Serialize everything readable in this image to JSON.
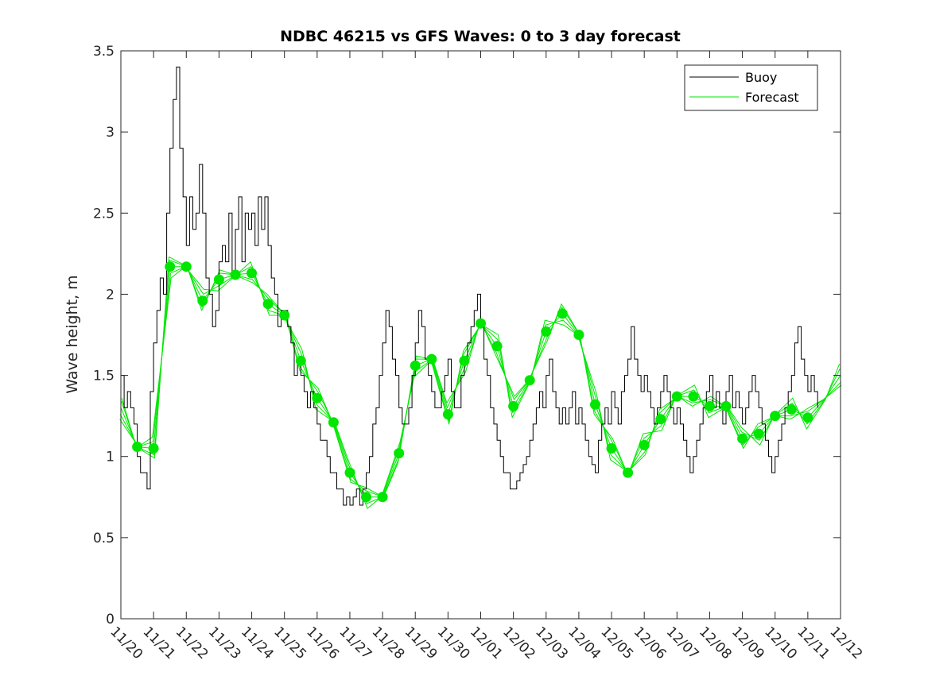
{
  "chart_data": {
    "type": "line",
    "title": "NDBC 46215 vs GFS Waves: 0 to 3 day forecast",
    "xlabel": "",
    "ylabel": "Wave height, m",
    "x_tick_labels": [
      "11/20",
      "11/21",
      "11/22",
      "11/23",
      "11/24",
      "11/25",
      "11/26",
      "11/27",
      "11/28",
      "11/29",
      "11/30",
      "12/01",
      "12/02",
      "12/03",
      "12/04",
      "12/05",
      "12/06",
      "12/07",
      "12/08",
      "12/09",
      "12/10",
      "12/11",
      "12/12"
    ],
    "xlim": [
      0,
      22
    ],
    "y_ticks": [
      0,
      0.5,
      1,
      1.5,
      2,
      2.5,
      3,
      3.5
    ],
    "y_tick_labels": [
      "0",
      "0.5",
      "1",
      "1.5",
      "2",
      "2.5",
      "3",
      "3.5"
    ],
    "ylim": [
      0,
      3.5
    ],
    "grid": false,
    "legend_position": "top-right",
    "legend": [
      "Buoy",
      "Forecast"
    ],
    "colors": {
      "buoy": "#000000",
      "forecast": "#00e600",
      "axis": "#262626"
    },
    "x_units": "days since 11/20",
    "series": [
      {
        "name": "Buoy",
        "x": [
          0,
          0.1,
          0.2,
          0.3,
          0.4,
          0.5,
          0.6,
          0.7,
          0.8,
          0.9,
          1.0,
          1.1,
          1.2,
          1.3,
          1.4,
          1.5,
          1.6,
          1.7,
          1.8,
          1.9,
          2.0,
          2.1,
          2.2,
          2.3,
          2.4,
          2.5,
          2.6,
          2.7,
          2.8,
          2.9,
          3.0,
          3.1,
          3.2,
          3.3,
          3.4,
          3.5,
          3.6,
          3.7,
          3.8,
          3.9,
          4.0,
          4.1,
          4.2,
          4.3,
          4.4,
          4.5,
          4.6,
          4.7,
          4.8,
          4.9,
          5.0,
          5.1,
          5.2,
          5.3,
          5.4,
          5.5,
          5.6,
          5.7,
          5.8,
          5.9,
          6.0,
          6.1,
          6.2,
          6.3,
          6.4,
          6.5,
          6.6,
          6.7,
          6.8,
          6.9,
          7.0,
          7.1,
          7.2,
          7.3,
          7.4,
          7.5,
          7.6,
          7.7,
          7.8,
          7.9,
          8.0,
          8.1,
          8.2,
          8.3,
          8.4,
          8.5,
          8.6,
          8.7,
          8.8,
          8.9,
          9.0,
          9.1,
          9.2,
          9.3,
          9.4,
          9.5,
          9.6,
          9.7,
          9.8,
          9.9,
          10.0,
          10.1,
          10.2,
          10.3,
          10.4,
          10.5,
          10.6,
          10.7,
          10.8,
          10.9,
          11.0,
          11.1,
          11.2,
          11.3,
          11.4,
          11.5,
          11.6,
          11.7,
          11.8,
          11.9,
          12.0,
          12.1,
          12.2,
          12.3,
          12.4,
          12.5,
          12.6,
          12.7,
          12.8,
          12.9,
          13.0,
          13.1,
          13.2,
          13.3,
          13.4,
          13.5,
          13.6,
          13.7,
          13.8,
          13.9,
          14.0,
          14.1,
          14.2,
          14.3,
          14.4,
          14.5,
          14.6,
          14.7,
          14.8,
          14.9,
          15.0,
          15.1,
          15.2,
          15.3,
          15.4,
          15.5,
          15.6,
          15.7,
          15.8,
          15.9,
          16.0,
          16.1,
          16.2,
          16.3,
          16.4,
          16.5,
          16.6,
          16.7,
          16.8,
          16.9,
          17.0,
          17.1,
          17.2,
          17.3,
          17.4,
          17.5,
          17.6,
          17.7,
          17.8,
          17.9,
          18.0,
          18.1,
          18.2,
          18.3,
          18.4,
          18.5,
          18.6,
          18.7,
          18.8,
          18.9,
          19.0,
          19.1,
          19.2,
          19.3,
          19.4,
          19.5,
          19.6,
          19.7,
          19.8,
          19.9,
          20.0,
          20.1,
          20.2,
          20.3,
          20.4,
          20.5,
          20.6,
          20.7,
          20.8,
          20.9,
          21.0,
          21.1,
          21.2,
          21.3
        ],
        "values": [
          1.5,
          1.3,
          1.4,
          1.3,
          1.2,
          1.0,
          0.9,
          0.9,
          0.8,
          1.4,
          1.7,
          1.9,
          2.1,
          2.0,
          2.5,
          2.9,
          3.2,
          3.4,
          2.9,
          2.6,
          2.3,
          2.6,
          2.4,
          2.5,
          2.8,
          2.5,
          2.1,
          2.0,
          1.8,
          1.9,
          2.2,
          2.3,
          2.2,
          2.5,
          2.1,
          2.4,
          2.6,
          2.2,
          2.5,
          2.4,
          2.5,
          2.3,
          2.6,
          2.4,
          2.6,
          2.3,
          2.1,
          2.0,
          1.8,
          1.9,
          1.9,
          1.8,
          1.7,
          1.5,
          1.6,
          1.5,
          1.4,
          1.3,
          1.4,
          1.3,
          1.2,
          1.1,
          1.1,
          1.0,
          0.9,
          0.9,
          0.8,
          0.8,
          0.7,
          0.75,
          0.7,
          0.75,
          0.8,
          0.7,
          0.8,
          0.9,
          1.0,
          1.2,
          1.3,
          1.5,
          1.7,
          1.9,
          1.8,
          1.6,
          1.5,
          1.3,
          1.2,
          1.2,
          1.3,
          1.5,
          1.7,
          1.9,
          1.8,
          1.6,
          1.5,
          1.4,
          1.3,
          1.3,
          1.4,
          1.5,
          1.6,
          1.4,
          1.3,
          1.3,
          1.5,
          1.6,
          1.7,
          1.8,
          1.9,
          2.0,
          1.8,
          1.6,
          1.5,
          1.3,
          1.2,
          1.1,
          1.0,
          0.9,
          0.9,
          0.8,
          0.8,
          0.85,
          0.9,
          0.95,
          1.0,
          1.1,
          1.2,
          1.3,
          1.4,
          1.3,
          1.5,
          1.6,
          1.4,
          1.3,
          1.2,
          1.3,
          1.2,
          1.3,
          1.4,
          1.2,
          1.3,
          1.2,
          1.1,
          1.0,
          0.95,
          0.9,
          1.1,
          1.2,
          1.3,
          1.2,
          1.4,
          1.3,
          1.2,
          1.4,
          1.5,
          1.6,
          1.8,
          1.6,
          1.5,
          1.4,
          1.5,
          1.4,
          1.3,
          1.2,
          1.3,
          1.4,
          1.5,
          1.4,
          1.3,
          1.2,
          1.3,
          1.2,
          1.1,
          1.0,
          0.9,
          1.0,
          1.1,
          1.2,
          1.3,
          1.4,
          1.5,
          1.3,
          1.4,
          1.3,
          1.2,
          1.4,
          1.5,
          1.3,
          1.4,
          1.3,
          1.2,
          1.3,
          1.4,
          1.5,
          1.4,
          1.3,
          1.2,
          1.1,
          1.0,
          0.9,
          1.0,
          1.1,
          1.2,
          1.3,
          1.4,
          1.5,
          1.7,
          1.8,
          1.6,
          1.5,
          1.4,
          1.5,
          1.4,
          1.3
        ]
      },
      {
        "name": "Forecast",
        "x": [
          0,
          0.5,
          1.0,
          1.5,
          2.0,
          2.5,
          3.0,
          3.5,
          4.0,
          4.5,
          5.0,
          5.5,
          6.0,
          6.5,
          7.0,
          7.5,
          8.0,
          8.5,
          9.0,
          9.5,
          10.0,
          10.5,
          11.0,
          11.5,
          12.0,
          12.5,
          13.0,
          13.5,
          14.0,
          14.5,
          15.0,
          15.5,
          16.0,
          16.5,
          17.0,
          17.5,
          18.0,
          18.5,
          19.0,
          19.5,
          20.0,
          20.5,
          21.0,
          21.5,
          22.0
        ],
        "values": [
          1.3,
          1.06,
          1.05,
          2.17,
          2.17,
          1.96,
          2.09,
          2.12,
          2.13,
          1.94,
          1.87,
          1.59,
          1.36,
          1.21,
          0.9,
          0.75,
          0.75,
          1.02,
          1.56,
          1.6,
          1.26,
          1.59,
          1.82,
          1.68,
          1.31,
          1.47,
          1.77,
          1.88,
          1.75,
          1.32,
          1.05,
          0.9,
          1.07,
          1.23,
          1.37,
          1.37,
          1.31,
          1.31,
          1.11,
          1.14,
          1.25,
          1.29,
          1.24,
          1.35,
          1.5
        ]
      }
    ],
    "forecast_markers": {
      "x": [
        0.5,
        1.0,
        1.5,
        2.0,
        2.5,
        3.0,
        3.5,
        4.0,
        4.5,
        5.0,
        5.5,
        6.0,
        6.5,
        7.0,
        7.5,
        8.0,
        8.5,
        9.0,
        9.5,
        10.0,
        10.5,
        11.0,
        11.5,
        12.0,
        12.5,
        13.0,
        13.5,
        14.0,
        14.5,
        15.0,
        15.5,
        16.0,
        16.5,
        17.0,
        17.5,
        18.0,
        18.5,
        19.0,
        19.5,
        20.0,
        20.5,
        21.0
      ],
      "values": [
        1.06,
        1.05,
        2.17,
        2.17,
        1.96,
        2.09,
        2.12,
        2.13,
        1.94,
        1.87,
        1.59,
        1.36,
        1.21,
        0.9,
        0.75,
        0.75,
        1.02,
        1.56,
        1.6,
        1.26,
        1.59,
        1.82,
        1.68,
        1.31,
        1.47,
        1.77,
        1.88,
        1.75,
        1.32,
        1.05,
        0.9,
        1.07,
        1.23,
        1.37,
        1.37,
        1.31,
        1.31,
        1.11,
        1.14,
        1.25,
        1.29,
        1.24
      ]
    }
  }
}
